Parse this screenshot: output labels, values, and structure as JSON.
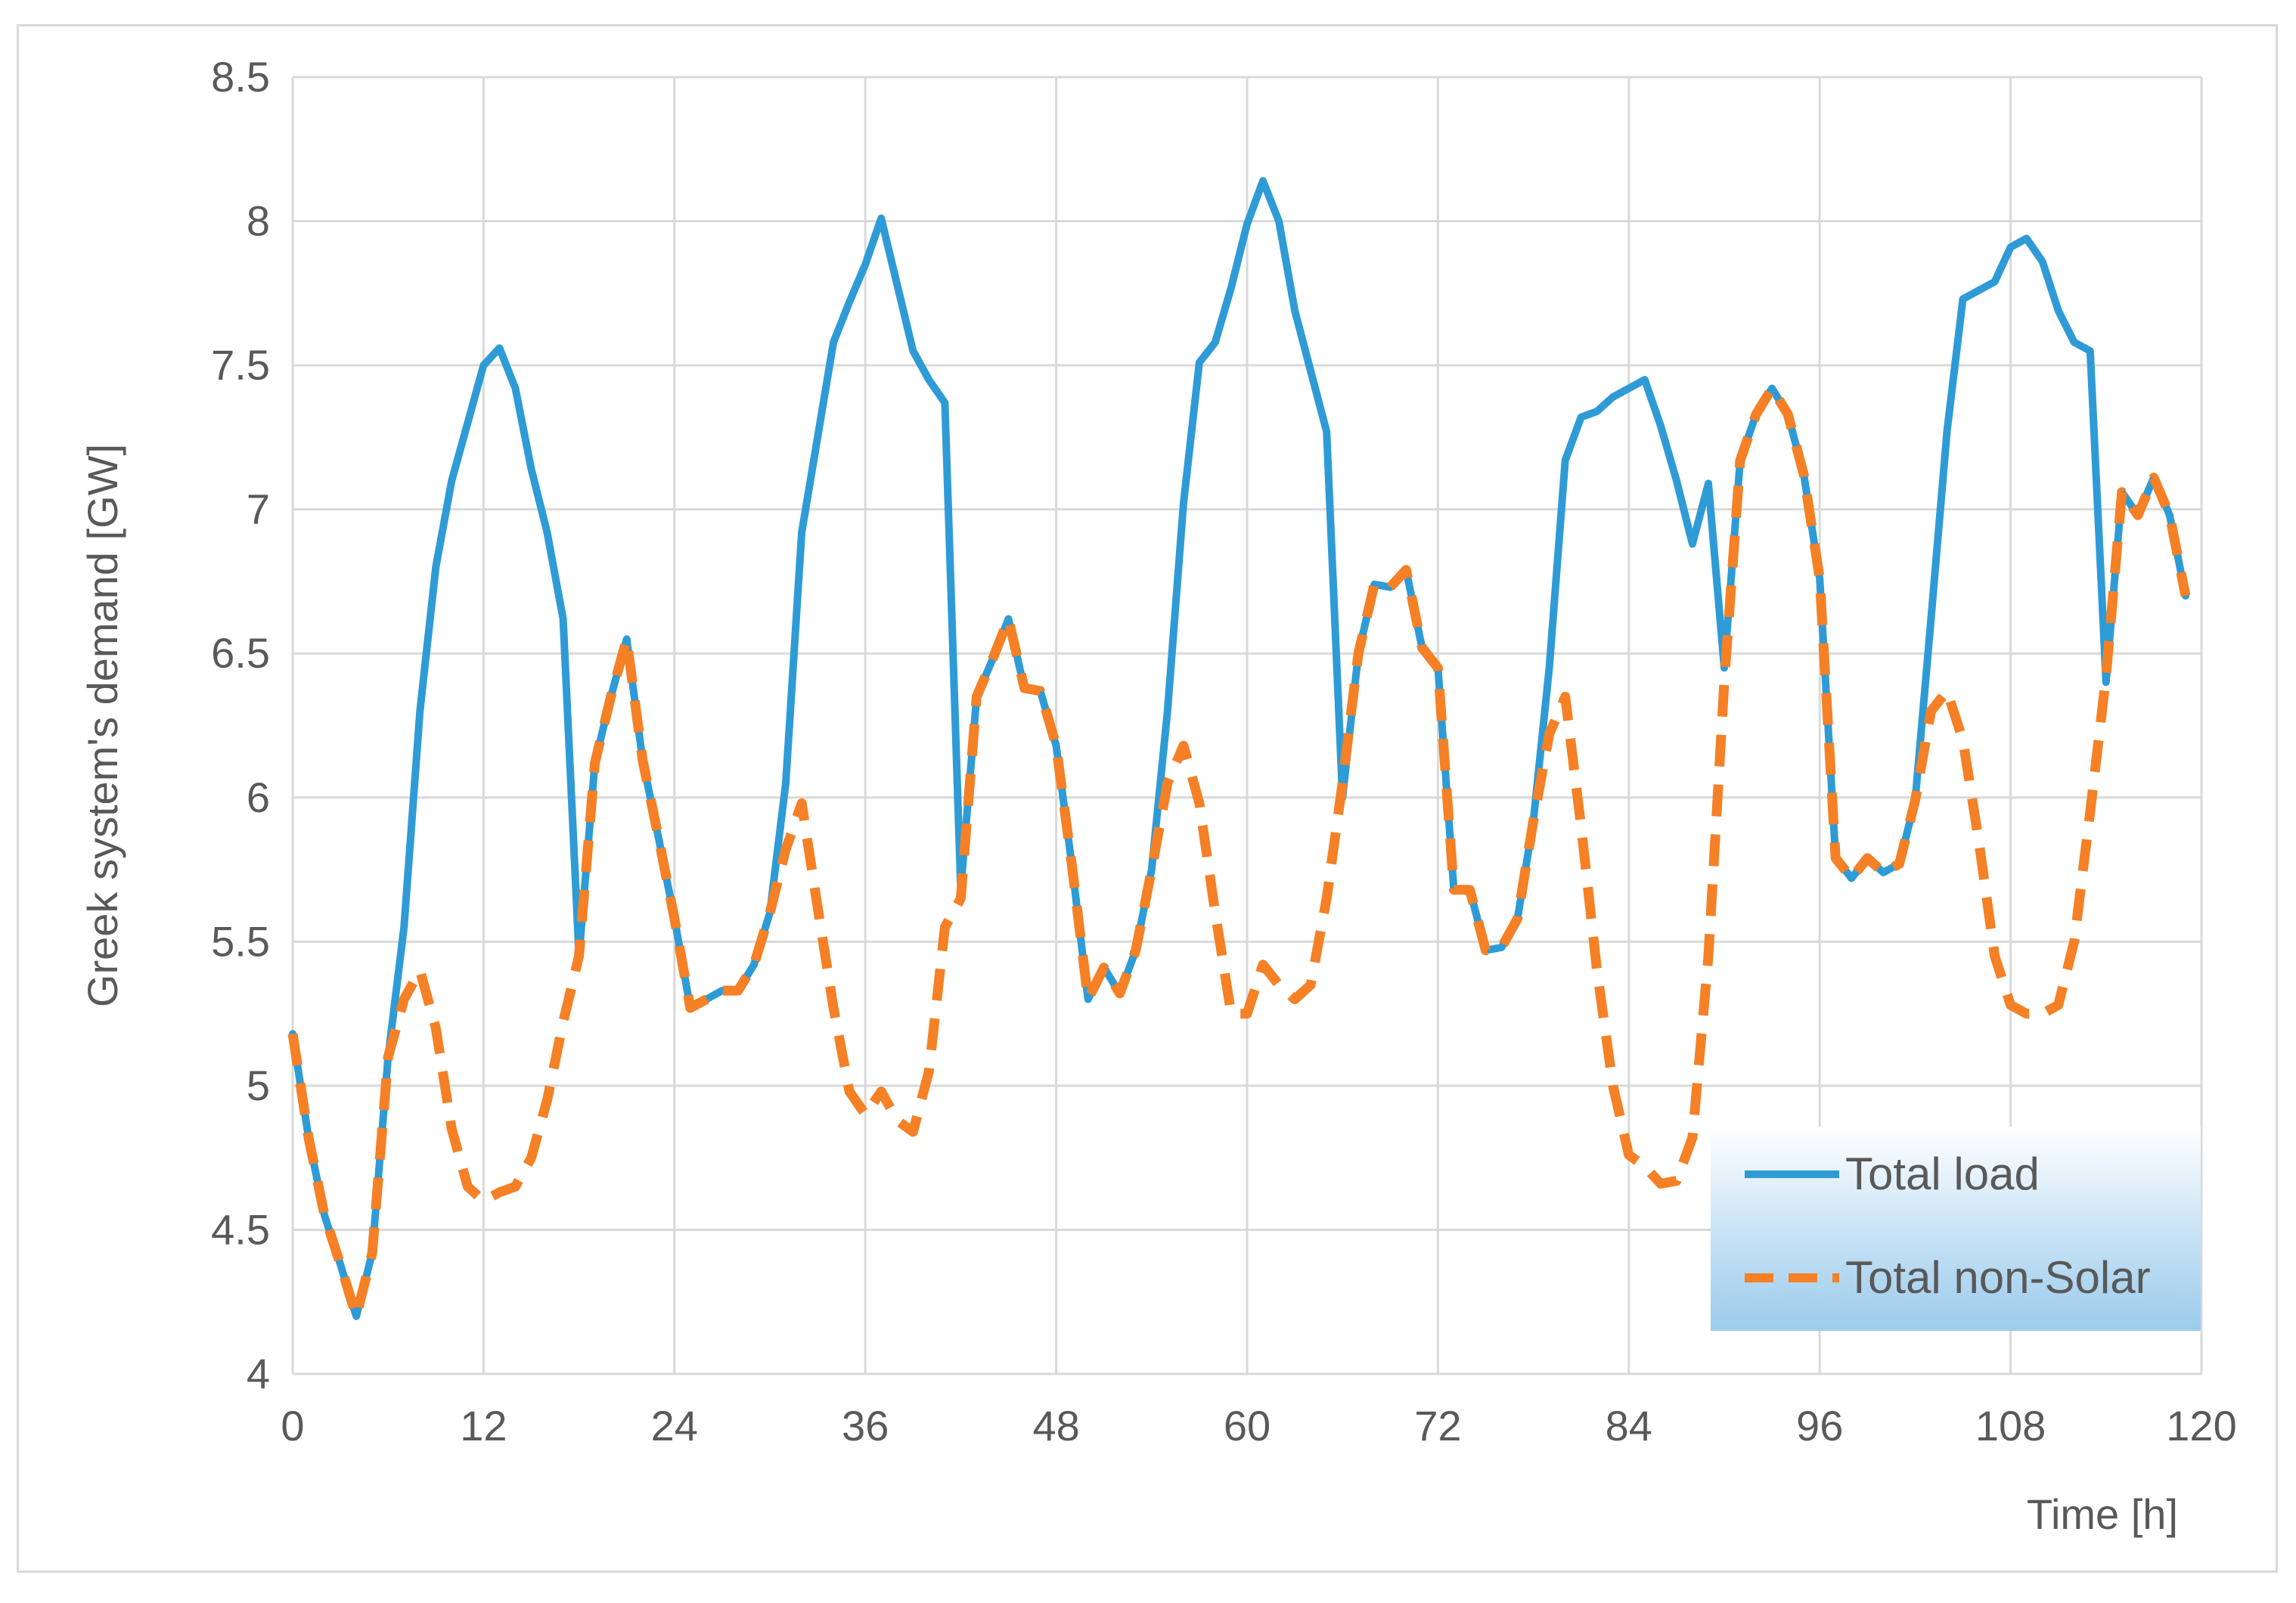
{
  "chart_data": {
    "type": "line",
    "title": "",
    "xlabel": "Time [h]",
    "ylabel": "Greek system's demand [GW]",
    "xlim": [
      0,
      120
    ],
    "ylim": [
      4,
      8.5
    ],
    "xticks": [
      0,
      12,
      24,
      36,
      48,
      60,
      72,
      84,
      96,
      108,
      120
    ],
    "yticks": [
      4,
      4.5,
      5,
      5.5,
      6,
      6.5,
      7,
      7.5,
      8,
      8.5
    ],
    "grid": true,
    "legend_position": "bottom-right",
    "series": [
      {
        "name": "Total load",
        "color": "#2e9bd6",
        "dash": "solid",
        "x": [
          0,
          1,
          2,
          3,
          4,
          5,
          6,
          7,
          8,
          9,
          10,
          11,
          12,
          13,
          14,
          15,
          16,
          17,
          18,
          19,
          20,
          21,
          22,
          23,
          24,
          25,
          26,
          27,
          28,
          29,
          30,
          31,
          32,
          33,
          34,
          35,
          36,
          37,
          38,
          39,
          40,
          41,
          42,
          43,
          44,
          45,
          46,
          47,
          48,
          49,
          50,
          51,
          52,
          53,
          54,
          55,
          56,
          57,
          58,
          59,
          60,
          61,
          62,
          63,
          64,
          65,
          66,
          67,
          68,
          69,
          70,
          71,
          72,
          73,
          74,
          75,
          76,
          77,
          78,
          79,
          80,
          81,
          82,
          83,
          84,
          85,
          86,
          87,
          88,
          89,
          90,
          91,
          92,
          93,
          94,
          95,
          96,
          97,
          98,
          99,
          100,
          101,
          102,
          103,
          104,
          105,
          106,
          107,
          108,
          109,
          110,
          111,
          112,
          113,
          114,
          115,
          116,
          117,
          118,
          119
        ],
        "y": [
          5.18,
          4.82,
          4.55,
          4.38,
          4.2,
          4.42,
          5.1,
          5.55,
          6.3,
          6.8,
          7.1,
          7.3,
          7.5,
          7.56,
          7.42,
          7.14,
          6.92,
          6.62,
          5.45,
          6.12,
          6.35,
          6.55,
          6.13,
          5.86,
          5.58,
          5.27,
          5.3,
          5.33,
          5.33,
          5.42,
          5.6,
          6.05,
          6.92,
          7.25,
          7.58,
          7.72,
          7.85,
          8.01,
          7.78,
          7.55,
          7.45,
          7.37,
          5.68,
          6.35,
          6.48,
          6.62,
          6.38,
          6.37,
          6.18,
          5.76,
          5.3,
          5.41,
          5.32,
          5.47,
          5.75,
          6.3,
          7.02,
          7.51,
          7.58,
          7.77,
          7.99,
          8.14,
          8.0,
          7.69,
          7.48,
          7.27,
          6.0,
          6.5,
          6.74,
          6.73,
          6.79,
          6.52,
          6.45,
          5.68,
          5.68,
          5.47,
          5.48,
          5.58,
          5.92,
          6.45,
          7.17,
          7.32,
          7.34,
          7.39,
          7.42,
          7.45,
          7.29,
          7.1,
          6.88,
          7.09,
          6.45,
          7.17,
          7.33,
          7.42,
          7.33,
          7.12,
          6.76,
          5.79,
          5.72,
          5.79,
          5.74,
          5.77,
          5.99,
          6.62,
          7.27,
          7.73,
          7.76,
          7.79,
          7.91,
          7.94,
          7.86,
          7.69,
          7.58,
          7.55,
          6.4,
          7.06,
          6.98,
          7.11,
          6.98,
          6.7
        ]
      },
      {
        "name": "Total non-Solar",
        "color": "#f58025",
        "dash": "dashed",
        "x": [
          0,
          1,
          2,
          3,
          4,
          5,
          6,
          7,
          8,
          9,
          10,
          11,
          12,
          13,
          14,
          15,
          16,
          17,
          18,
          19,
          20,
          21,
          22,
          23,
          24,
          25,
          26,
          27,
          28,
          29,
          30,
          31,
          32,
          33,
          34,
          35,
          36,
          37,
          38,
          39,
          40,
          41,
          42,
          43,
          44,
          45,
          46,
          47,
          48,
          49,
          50,
          51,
          52,
          53,
          54,
          55,
          56,
          57,
          58,
          59,
          60,
          61,
          62,
          63,
          64,
          65,
          66,
          67,
          68,
          69,
          70,
          71,
          72,
          73,
          74,
          75,
          76,
          77,
          78,
          79,
          80,
          81,
          82,
          83,
          84,
          85,
          86,
          87,
          88,
          89,
          90,
          91,
          92,
          93,
          94,
          95,
          96,
          97,
          98,
          99,
          100,
          101,
          102,
          103,
          104,
          105,
          106,
          107,
          108,
          109,
          110,
          111,
          112,
          113,
          114,
          115,
          116,
          117,
          118,
          119
        ],
        "y": [
          5.18,
          4.82,
          4.55,
          4.38,
          4.2,
          4.42,
          5.1,
          5.3,
          5.4,
          5.2,
          4.85,
          4.65,
          4.6,
          4.63,
          4.65,
          4.75,
          4.95,
          5.22,
          5.45,
          6.12,
          6.35,
          6.55,
          6.13,
          5.86,
          5.58,
          5.27,
          5.3,
          5.33,
          5.33,
          5.42,
          5.6,
          5.82,
          5.98,
          5.62,
          5.27,
          4.98,
          4.9,
          4.98,
          4.88,
          4.84,
          5.05,
          5.55,
          5.65,
          6.35,
          6.48,
          6.62,
          6.38,
          6.37,
          6.18,
          5.76,
          5.3,
          5.41,
          5.32,
          5.47,
          5.75,
          6.05,
          6.18,
          5.98,
          5.6,
          5.25,
          5.25,
          5.42,
          5.35,
          5.3,
          5.35,
          5.65,
          6.05,
          6.5,
          6.74,
          6.73,
          6.79,
          6.52,
          6.45,
          5.68,
          5.68,
          5.47,
          5.48,
          5.58,
          5.92,
          6.22,
          6.35,
          5.9,
          5.4,
          5.0,
          4.76,
          4.72,
          4.66,
          4.67,
          4.82,
          5.45,
          6.4,
          7.17,
          7.33,
          7.42,
          7.33,
          7.12,
          6.76,
          5.79,
          5.72,
          5.79,
          5.74,
          5.77,
          5.99,
          6.3,
          6.37,
          6.2,
          5.85,
          5.45,
          5.28,
          5.25,
          5.25,
          5.28,
          5.5,
          5.95,
          6.42,
          7.06,
          6.98,
          7.11,
          6.98,
          6.7
        ]
      }
    ]
  }
}
